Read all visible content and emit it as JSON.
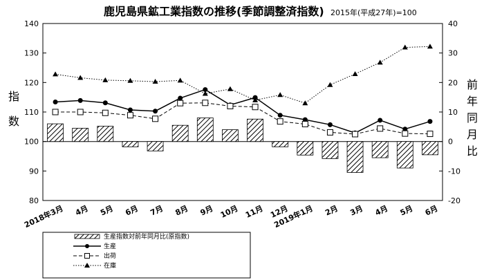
{
  "chart_data": {
    "type": "bar+line",
    "title": "鹿児島県鉱工業指数の推移(季節調整済指数)",
    "subtitle": "2015年(平成27年)=100",
    "ylabel_left_chars": [
      "指",
      "数"
    ],
    "ylabel_right_chars": [
      "前",
      "年",
      "同",
      "月",
      "比"
    ],
    "ylim_left": [
      80,
      140
    ],
    "ylim_right": [
      -20,
      40
    ],
    "yticks_left": [
      "80",
      "90",
      "100",
      "110",
      "120",
      "130",
      "140"
    ],
    "yticks_right": [
      "-20",
      "-10",
      "0",
      "10",
      "20",
      "30",
      "40"
    ],
    "categories": [
      "2018年3月",
      "4月",
      "5月",
      "6月",
      "7月",
      "8月",
      "9月",
      "10月",
      "11月",
      "12月",
      "2019年1月",
      "2月",
      "3月",
      "4月",
      "5月",
      "6月"
    ],
    "bars": {
      "name": "生産指数対前年同月比(原指数)",
      "axis": "right",
      "values": [
        6.0,
        4.5,
        5.2,
        -1.8,
        -3.2,
        5.5,
        8.0,
        4.0,
        7.6,
        -1.8,
        -4.6,
        -5.8,
        -10.5,
        -5.5,
        -9.0,
        -4.5
      ]
    },
    "series": [
      {
        "name": "生産",
        "marker": "filled-circle",
        "linestyle": "solid",
        "axis": "left",
        "values": [
          113.4,
          113.9,
          113.1,
          110.7,
          110.3,
          114.7,
          117.6,
          112.4,
          114.9,
          108.9,
          107.4,
          105.7,
          102.9,
          107.2,
          104.2,
          106.8
        ]
      },
      {
        "name": "出荷",
        "marker": "open-square",
        "linestyle": "dashed",
        "axis": "left",
        "values": [
          110.0,
          110.0,
          109.7,
          108.9,
          107.7,
          113.0,
          113.1,
          112.0,
          111.7,
          106.8,
          105.9,
          103.1,
          102.5,
          104.4,
          102.7,
          102.6
        ]
      },
      {
        "name": "在庫",
        "marker": "filled-triangle",
        "linestyle": "dotted",
        "axis": "left",
        "values": [
          122.8,
          121.6,
          120.8,
          120.6,
          120.3,
          120.7,
          116.2,
          117.8,
          114.0,
          115.8,
          113.0,
          119.2,
          122.9,
          126.8,
          131.9,
          132.2
        ]
      }
    ]
  }
}
